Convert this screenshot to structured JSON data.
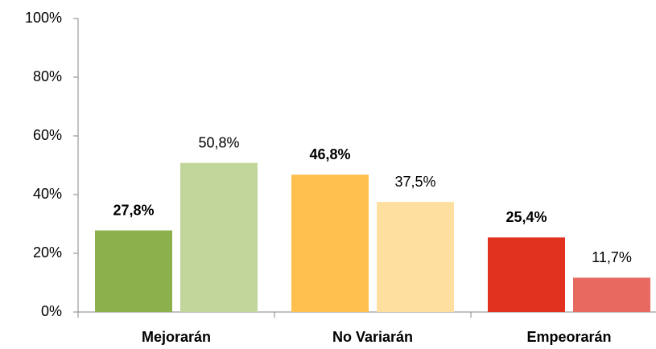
{
  "chart_data": {
    "type": "bar",
    "categories": [
      "Mejorarán",
      "No Variarán",
      "Empeorarán"
    ],
    "series": [
      {
        "colors": [
          "#8cb04b",
          "#ffc04d",
          "#e0321f"
        ],
        "values": [
          27.8,
          46.8,
          25.4
        ],
        "value_labels": [
          "27,8%",
          "46,8%",
          "25,4%"
        ]
      },
      {
        "colors": [
          "#c2d59a",
          "#ffdfa0",
          "#e8695f"
        ],
        "values": [
          50.8,
          37.5,
          11.7
        ],
        "value_labels": [
          "50,8%",
          "37,5%",
          "11,7%"
        ]
      }
    ],
    "ylim": [
      0,
      100
    ],
    "yticks": [
      {
        "value": 0,
        "label": "0%"
      },
      {
        "value": 20,
        "label": "20%"
      },
      {
        "value": 40,
        "label": "40%"
      },
      {
        "value": 60,
        "label": "60%"
      },
      {
        "value": 80,
        "label": "80%"
      },
      {
        "value": 100,
        "label": "100%"
      }
    ],
    "grid": false
  }
}
